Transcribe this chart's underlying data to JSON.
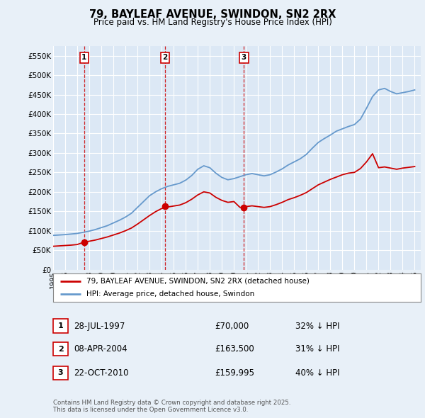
{
  "title": "79, BAYLEAF AVENUE, SWINDON, SN2 2RX",
  "subtitle": "Price paid vs. HM Land Registry's House Price Index (HPI)",
  "bg_color": "#e8f0f8",
  "plot_bg_color": "#dce8f5",
  "grid_color": "#ffffff",
  "ylim": [
    0,
    575000
  ],
  "yticks": [
    0,
    50000,
    100000,
    150000,
    200000,
    250000,
    300000,
    350000,
    400000,
    450000,
    500000,
    550000
  ],
  "ytick_labels": [
    "£0",
    "£50K",
    "£100K",
    "£150K",
    "£200K",
    "£250K",
    "£300K",
    "£350K",
    "£400K",
    "£450K",
    "£500K",
    "£550K"
  ],
  "sale_prices": [
    70000,
    163500,
    159995
  ],
  "sale_labels": [
    "1",
    "2",
    "3"
  ],
  "sale_year_nums": [
    1997.581,
    2004.281,
    2010.831
  ],
  "sale_color": "#cc0000",
  "hpi_color": "#6699cc",
  "legend_label_red": "79, BAYLEAF AVENUE, SWINDON, SN2 2RX (detached house)",
  "legend_label_blue": "HPI: Average price, detached house, Swindon",
  "table_rows": [
    [
      "1",
      "28-JUL-1997",
      "£70,000",
      "32% ↓ HPI"
    ],
    [
      "2",
      "08-APR-2004",
      "£163,500",
      "31% ↓ HPI"
    ],
    [
      "3",
      "22-OCT-2010",
      "£159,995",
      "40% ↓ HPI"
    ]
  ],
  "footnote": "Contains HM Land Registry data © Crown copyright and database right 2025.\nThis data is licensed under the Open Government Licence v3.0.",
  "hpi_years": [
    1995,
    1995.5,
    1996,
    1996.5,
    1997,
    1997.5,
    1998,
    1998.5,
    1999,
    1999.5,
    2000,
    2000.5,
    2001,
    2001.5,
    2002,
    2002.5,
    2003,
    2003.5,
    2004,
    2004.5,
    2005,
    2005.5,
    2006,
    2006.5,
    2007,
    2007.5,
    2008,
    2008.5,
    2009,
    2009.5,
    2010,
    2010.5,
    2011,
    2011.5,
    2012,
    2012.5,
    2013,
    2013.5,
    2014,
    2014.5,
    2015,
    2015.5,
    2016,
    2016.5,
    2017,
    2017.5,
    2018,
    2018.5,
    2019,
    2019.5,
    2020,
    2020.5,
    2021,
    2021.5,
    2022,
    2022.5,
    2023,
    2023.5,
    2024,
    2024.5,
    2025
  ],
  "hpi_values": [
    88000,
    89000,
    90000,
    91500,
    93000,
    96000,
    99000,
    103000,
    108000,
    113000,
    120000,
    127000,
    135000,
    145000,
    160000,
    175000,
    190000,
    200000,
    208000,
    214000,
    218000,
    222000,
    230000,
    242000,
    258000,
    267000,
    262000,
    248000,
    237000,
    231000,
    234000,
    239000,
    244000,
    247000,
    244000,
    241000,
    244000,
    251000,
    259000,
    269000,
    277000,
    285000,
    296000,
    312000,
    327000,
    337000,
    346000,
    356000,
    362000,
    368000,
    373000,
    387000,
    415000,
    445000,
    462000,
    466000,
    458000,
    452000,
    455000,
    458000,
    462000
  ],
  "red_values": [
    60000,
    61000,
    62000,
    63000,
    64500,
    70000,
    73000,
    76000,
    80000,
    84000,
    89000,
    94000,
    100000,
    107000,
    117000,
    128000,
    139000,
    149000,
    157000,
    161000,
    163500,
    166000,
    172000,
    181000,
    192000,
    200000,
    197000,
    186000,
    178000,
    173000,
    175000,
    159995,
    162000,
    164000,
    162000,
    160000,
    162000,
    167000,
    173000,
    180000,
    185000,
    191000,
    198000,
    208000,
    218000,
    225000,
    232000,
    238000,
    244000,
    248000,
    250000,
    260000,
    277000,
    298000,
    262000,
    264000,
    261000,
    258000,
    261000,
    263000,
    265000
  ]
}
